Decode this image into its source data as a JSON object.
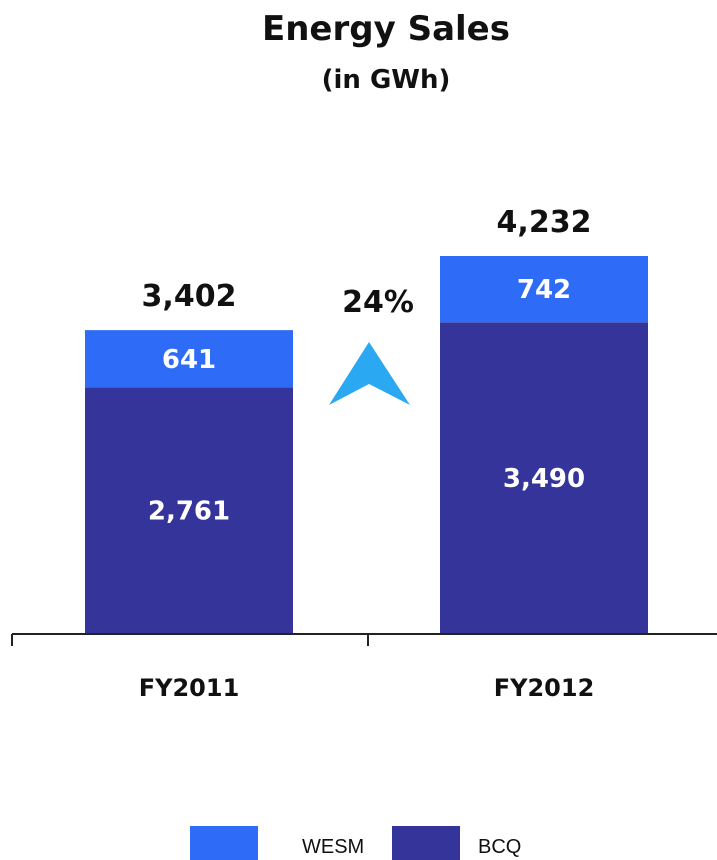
{
  "chart_data": {
    "type": "bar",
    "stacked": true,
    "title": "Energy Sales",
    "subtitle": "(in GWh)",
    "categories": [
      "FY2011",
      "FY2012"
    ],
    "series": [
      {
        "name": "BCQ",
        "values": [
          2761,
          3490
        ],
        "labels": [
          "2,761",
          "3,490"
        ],
        "color": "#35349A"
      },
      {
        "name": "WESM",
        "values": [
          641,
          742
        ],
        "labels": [
          "641",
          "742"
        ],
        "color": "#2E6BF6"
      }
    ],
    "totals": [
      "3,402",
      "4,232"
    ],
    "annotation": {
      "text": "24%",
      "icon": "up-arrow-icon",
      "color": "#2AA8F2"
    },
    "ylim": [
      0,
      4232
    ],
    "grid": false,
    "legend": {
      "placement": "bottom",
      "order": [
        "WESM",
        "BCQ"
      ]
    }
  }
}
